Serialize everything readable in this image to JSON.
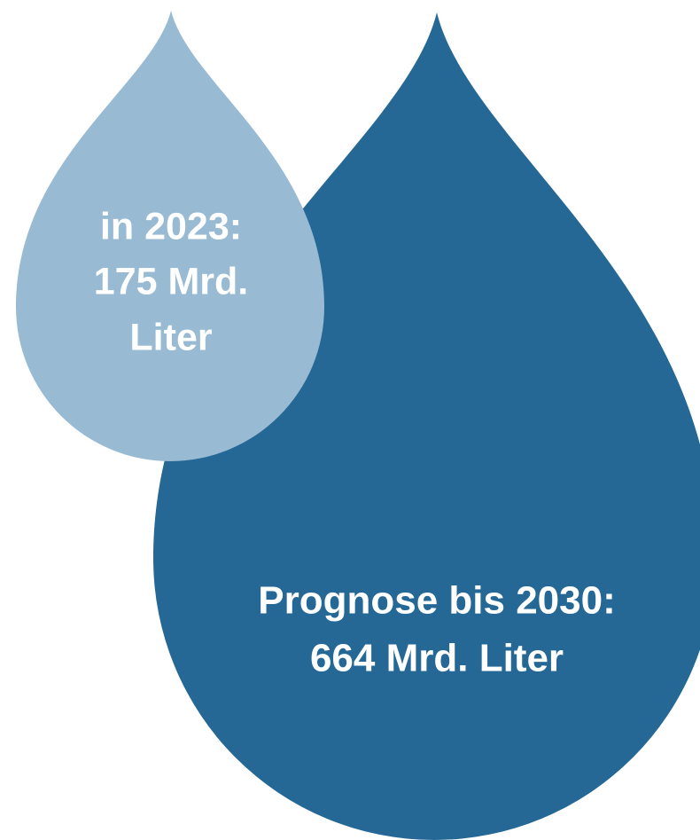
{
  "drops": [
    {
      "lines": [
        "in 2023:",
        "175 Mrd.",
        "Liter"
      ]
    },
    {
      "lines": [
        "Prognose bis 2030:",
        "664 Mrd. Liter"
      ]
    }
  ]
}
